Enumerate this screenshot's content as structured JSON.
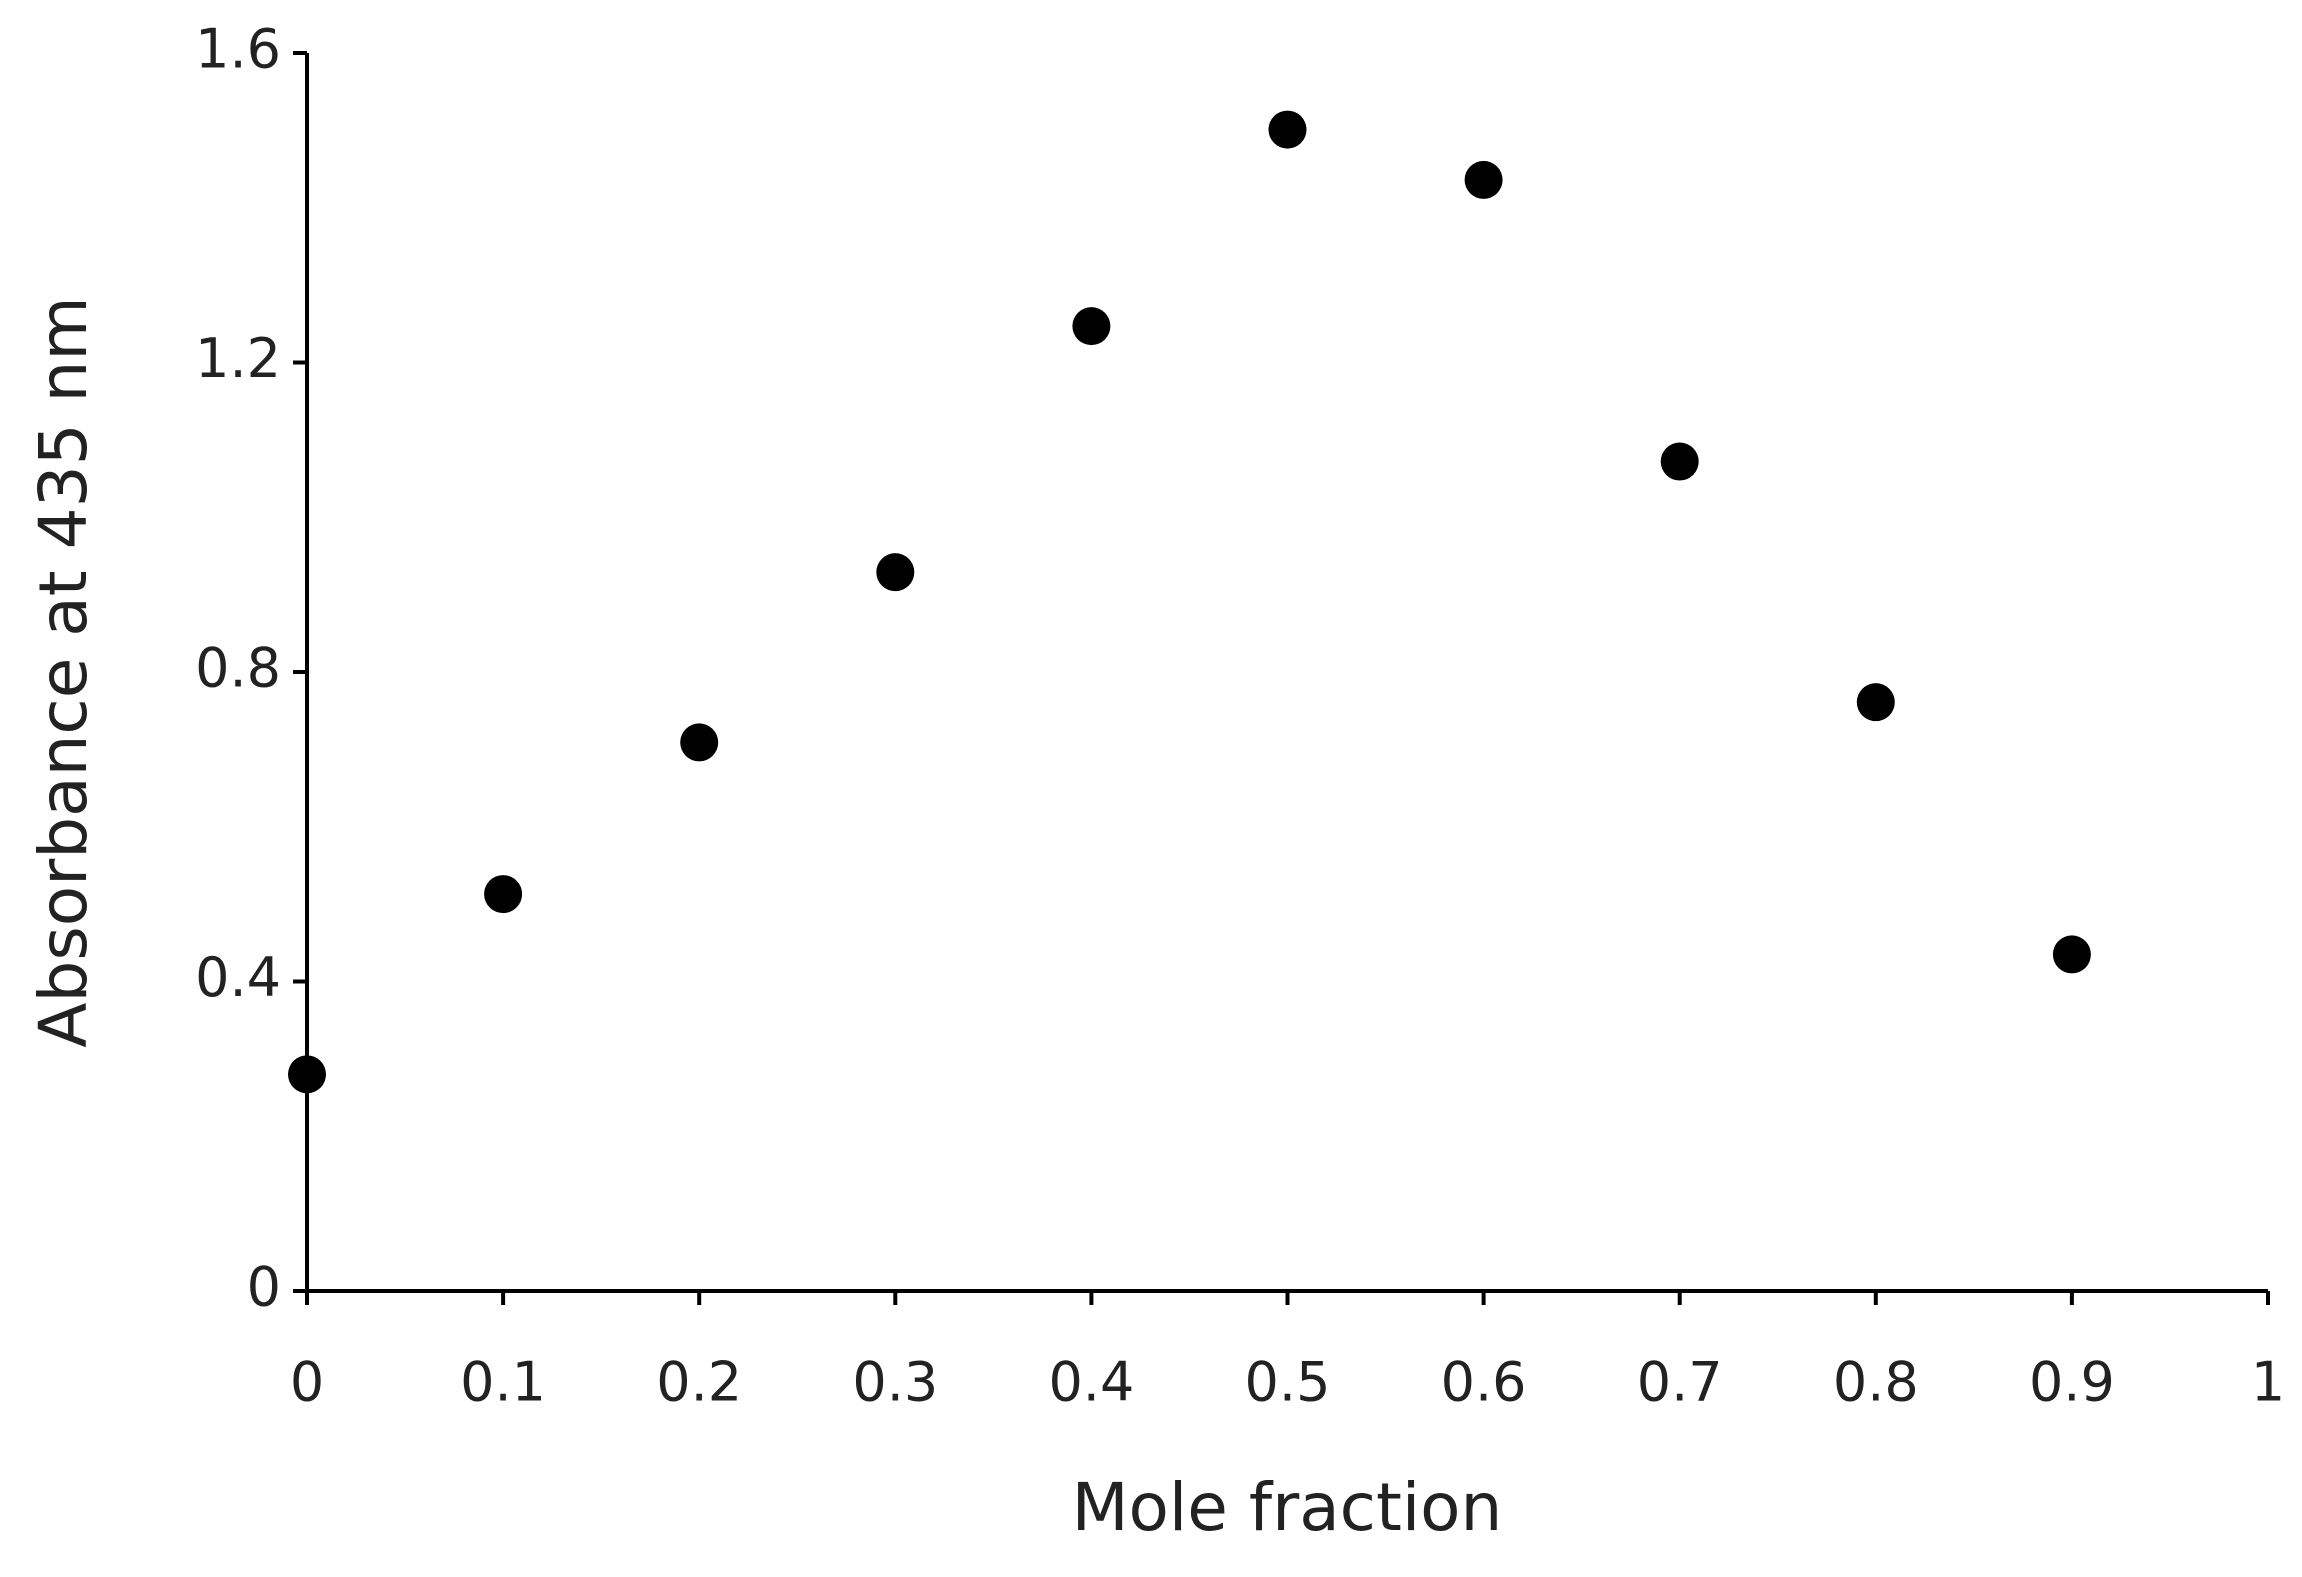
{
  "chart_data": {
    "type": "scatter",
    "x_label": "Mole fraction",
    "y_label": "Absorbance at 435 nm",
    "series": [
      {
        "color": "#000000",
        "x": [
          0,
          0.1,
          0.2,
          0.3,
          0.4,
          0.5,
          0.6,
          0.7,
          0.8,
          0.9
        ],
        "values": [
          0.28,
          0.513,
          0.709,
          0.929,
          1.247,
          1.501,
          1.436,
          1.072,
          0.761,
          0.435
        ]
      }
    ],
    "xlim": [
      0,
      1
    ],
    "xticks": [
      0,
      0.1,
      0.2,
      0.3,
      0.4,
      0.5,
      0.6,
      0.7,
      0.8,
      0.9,
      1
    ],
    "ylim": [
      0,
      1.6
    ],
    "yticks": [
      0,
      0.4,
      0.8,
      1.2,
      1.6
    ],
    "grid": false
  }
}
